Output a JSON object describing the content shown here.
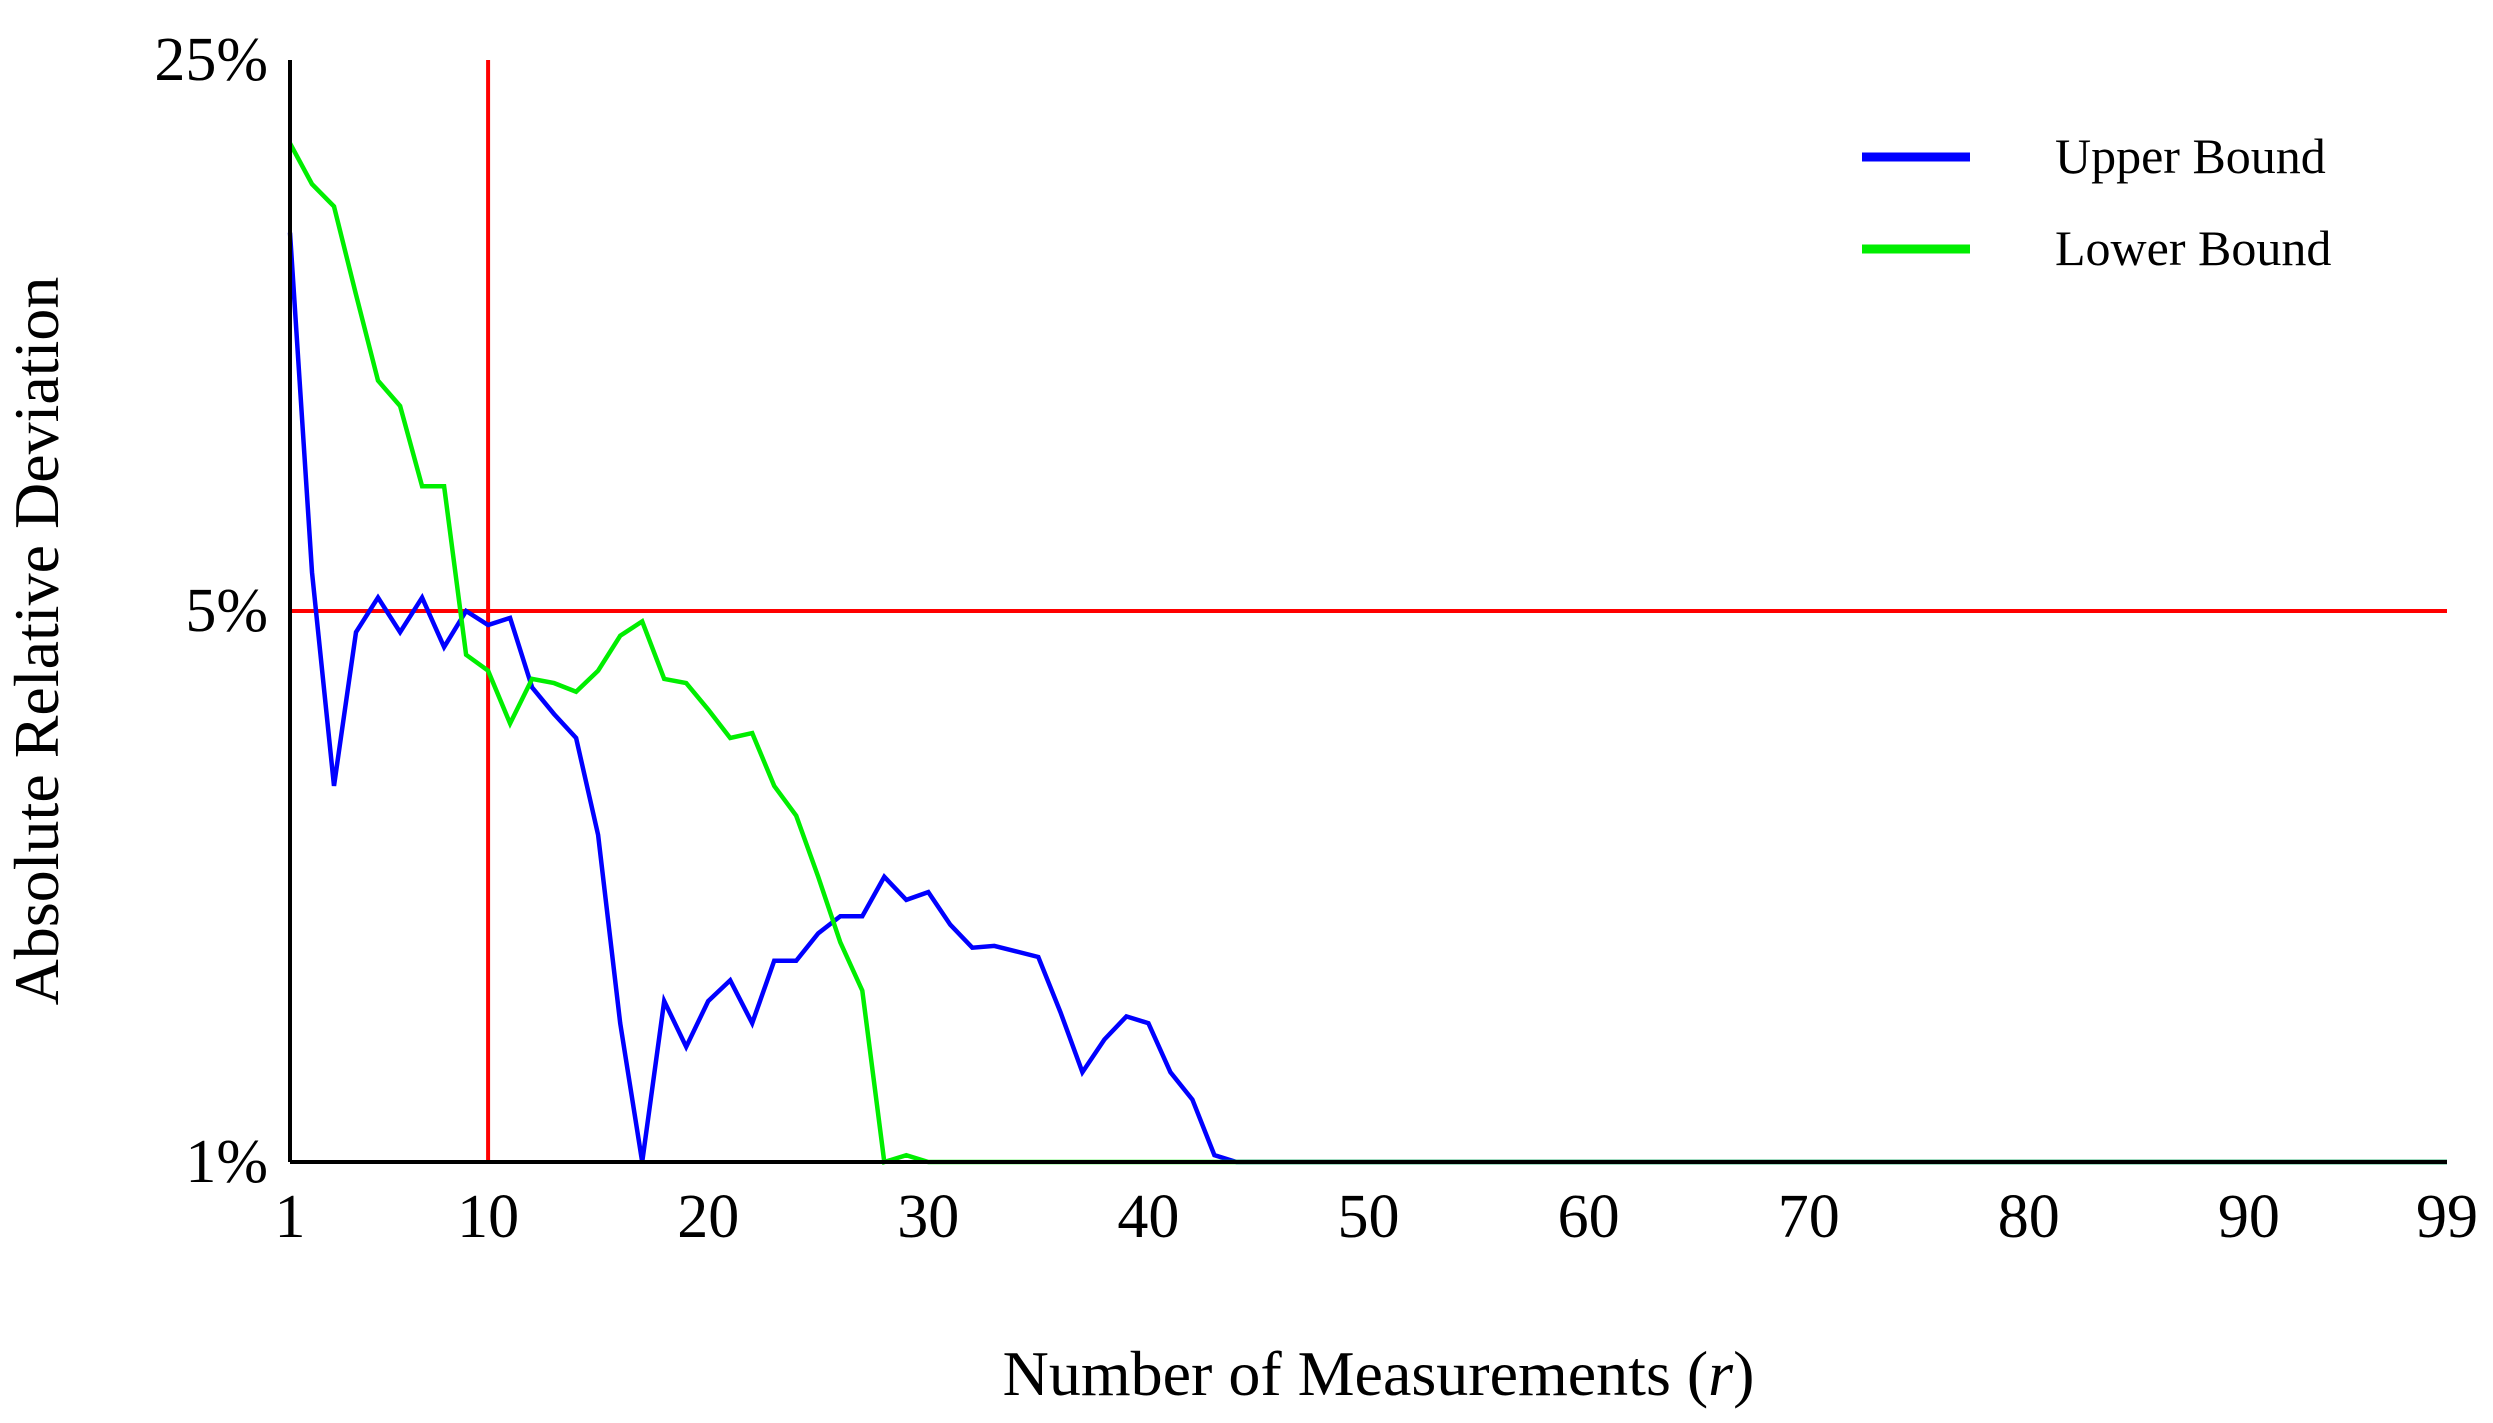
{
  "chart_data": {
    "type": "line",
    "xlabel": "Number of Measurements",
    "xlabel_var": "r",
    "ylabel": "Absolute Relative Deviation",
    "xlim": [
      1,
      99
    ],
    "ylim": [
      1,
      25
    ],
    "yscale": "log",
    "xticks": [
      1,
      10,
      20,
      30,
      40,
      50,
      60,
      70,
      80,
      90,
      99
    ],
    "yticks": [
      {
        "value": 1,
        "label": "1%"
      },
      {
        "value": 5,
        "label": "5%"
      },
      {
        "value": 25,
        "label": "25%"
      }
    ],
    "grid": false,
    "legend_position": "top-right",
    "reference_lines": [
      {
        "orientation": "vertical",
        "value": 10,
        "color": "#ff0000"
      },
      {
        "orientation": "horizontal",
        "value": 5,
        "color": "#ff0000"
      }
    ],
    "series": [
      {
        "name": "Upper Bound",
        "color": "#0000ff",
        "x": [
          1,
          2,
          3,
          4,
          5,
          6,
          7,
          8,
          9,
          10,
          11,
          12,
          13,
          14,
          15,
          16,
          17,
          18,
          19,
          20,
          21,
          22,
          23,
          24,
          25,
          26,
          27,
          28,
          29,
          30,
          31,
          32,
          33,
          34,
          35,
          36,
          37,
          38,
          39,
          40,
          41,
          42,
          43,
          44,
          45,
          99
        ],
        "y": [
          15.1,
          5.6,
          3.0,
          4.7,
          5.2,
          4.7,
          5.2,
          4.5,
          5.0,
          4.8,
          4.9,
          4.0,
          3.7,
          3.45,
          2.6,
          1.5,
          1.0,
          1.6,
          1.4,
          1.6,
          1.7,
          1.5,
          1.8,
          1.8,
          1.95,
          2.05,
          2.05,
          2.3,
          2.15,
          2.2,
          2.0,
          1.87,
          1.88,
          1.85,
          1.82,
          1.55,
          1.3,
          1.43,
          1.53,
          1.5,
          1.3,
          1.2,
          1.02,
          1.0,
          1.0,
          1.0
        ]
      },
      {
        "name": "Lower Bound",
        "color": "#00ee00",
        "x": [
          1,
          2,
          3,
          4,
          5,
          6,
          7,
          8,
          9,
          10,
          11,
          12,
          13,
          14,
          15,
          16,
          17,
          18,
          19,
          20,
          21,
          22,
          23,
          24,
          25,
          26,
          27,
          28,
          29,
          30,
          99
        ],
        "y": [
          19.6,
          17.4,
          16.3,
          12.6,
          9.8,
          9.1,
          7.2,
          7.2,
          4.4,
          4.2,
          3.6,
          4.1,
          4.05,
          3.95,
          4.2,
          4.65,
          4.85,
          4.1,
          4.05,
          3.75,
          3.45,
          3.5,
          3.0,
          2.75,
          2.3,
          1.9,
          1.65,
          1.0,
          1.02,
          1.0,
          1.0
        ]
      }
    ]
  }
}
